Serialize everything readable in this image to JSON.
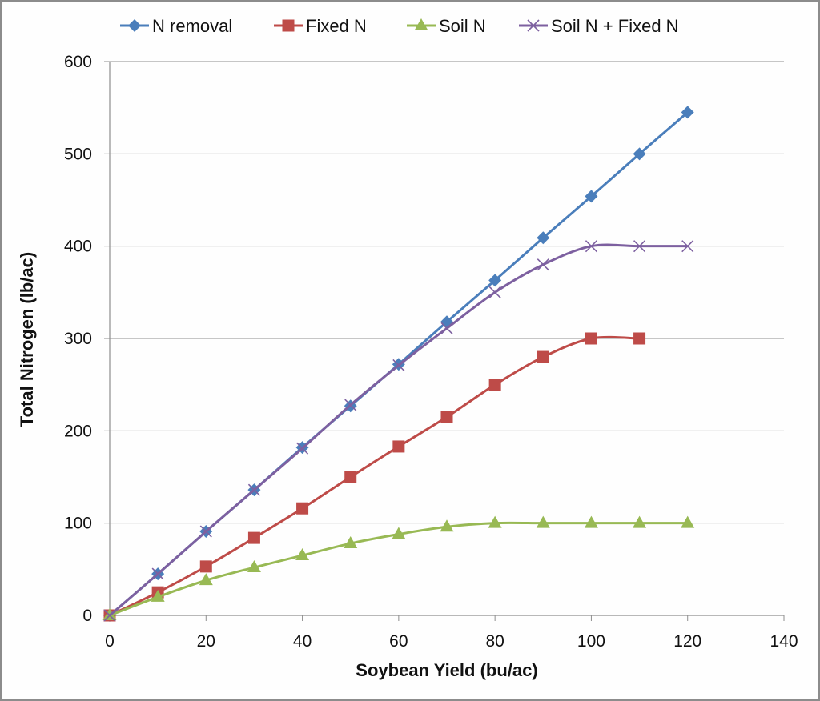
{
  "chart_data": {
    "type": "line",
    "title": "",
    "xlabel": "Soybean Yield (bu/ac)",
    "ylabel": "Total Nitrogen (lb/ac)",
    "xlim": [
      0,
      140
    ],
    "ylim": [
      0,
      600
    ],
    "xticks": [
      0,
      20,
      40,
      60,
      80,
      100,
      120,
      140
    ],
    "yticks": [
      0,
      100,
      200,
      300,
      400,
      500,
      600
    ],
    "grid": "horizontal",
    "legend_position": "top",
    "series": [
      {
        "name": "N removal",
        "color": "#4a7ebb",
        "marker": "diamond",
        "x": [
          0,
          10,
          20,
          30,
          40,
          50,
          60,
          70,
          80,
          90,
          100,
          110,
          120
        ],
        "values": [
          0,
          45,
          91,
          136,
          182,
          227,
          272,
          318,
          363,
          409,
          454,
          500,
          545
        ]
      },
      {
        "name": "Fixed N",
        "color": "#be4b48",
        "marker": "square",
        "x": [
          0,
          10,
          20,
          30,
          40,
          50,
          60,
          70,
          80,
          90,
          100,
          110
        ],
        "values": [
          0,
          25,
          53,
          84,
          116,
          150,
          183,
          215,
          250,
          280,
          300,
          300
        ]
      },
      {
        "name": "Soil N",
        "color": "#98b954",
        "marker": "triangle",
        "x": [
          0,
          10,
          20,
          30,
          40,
          50,
          60,
          70,
          80,
          90,
          100,
          110,
          120
        ],
        "values": [
          0,
          20,
          38,
          52,
          65,
          78,
          88,
          96,
          100,
          100,
          100,
          100,
          100
        ]
      },
      {
        "name": "Soil N + Fixed N",
        "color": "#7d60a0",
        "marker": "x",
        "x": [
          0,
          10,
          20,
          30,
          40,
          50,
          60,
          70,
          80,
          90,
          100,
          110,
          120
        ],
        "values": [
          0,
          45,
          91,
          136,
          181,
          228,
          271,
          311,
          350,
          380,
          400,
          400,
          400
        ]
      }
    ]
  },
  "legend": {
    "items": [
      {
        "label": "N removal"
      },
      {
        "label": "Fixed N"
      },
      {
        "label": "Soil N"
      },
      {
        "label": "Soil N + Fixed N"
      }
    ]
  },
  "axes": {
    "x_title": "Soybean Yield (bu/ac)",
    "y_title": "Total Nitrogen (lb/ac)"
  }
}
